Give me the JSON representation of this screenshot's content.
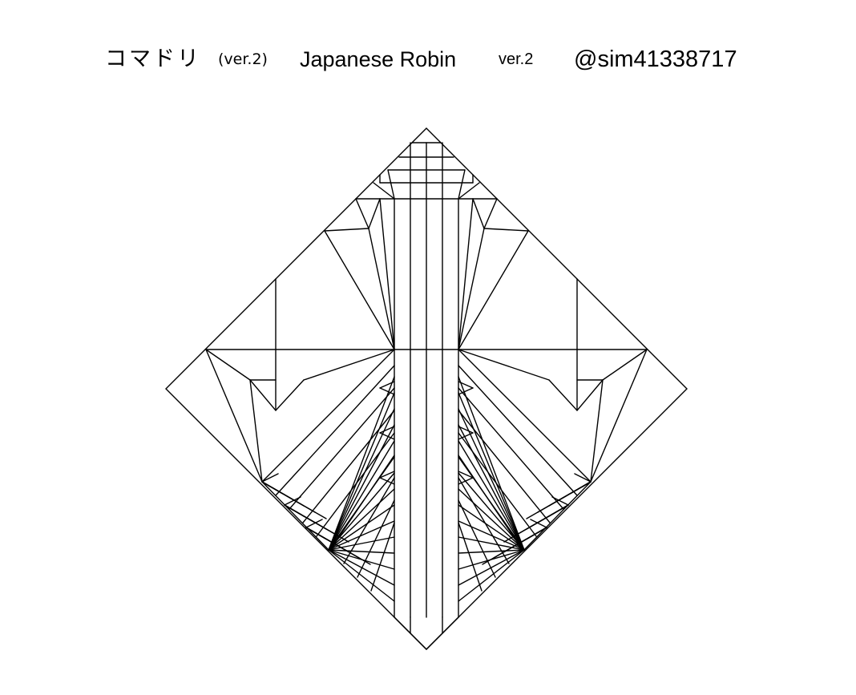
{
  "header": {
    "japanese_name": "コマドリ",
    "japanese_version": "(ver.2)",
    "english_name": "Japanese Robin",
    "english_version": "ver.2",
    "author_handle": "@sim41338717"
  },
  "diagram": {
    "subject": "origami crease pattern",
    "line_color": "#000000",
    "background_color": "#ffffff"
  }
}
